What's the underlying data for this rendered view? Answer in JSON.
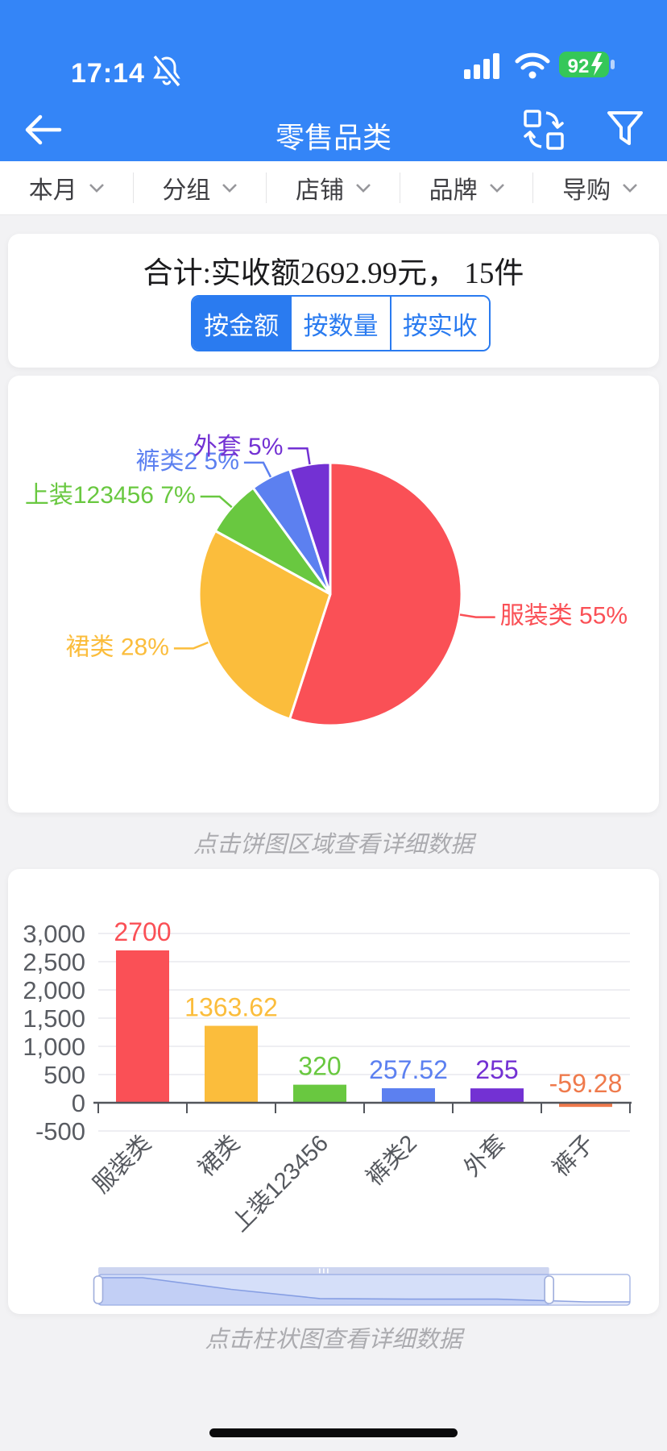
{
  "status_bar": {
    "time": "17:14",
    "battery_percent": "92",
    "icons": [
      "bell-muted-icon",
      "signal-icon",
      "wifi-icon",
      "battery-charging-icon"
    ]
  },
  "nav": {
    "title": "零售品类",
    "icons": [
      "back-arrow-icon",
      "switch-view-icon",
      "filter-funnel-icon"
    ]
  },
  "filters": [
    {
      "label": "本月"
    },
    {
      "label": "分组"
    },
    {
      "label": "店铺"
    },
    {
      "label": "品牌"
    },
    {
      "label": "导购"
    }
  ],
  "summary": {
    "total_text": "合计:实收额2692.99元， 15件"
  },
  "tabs": [
    {
      "label": "按金额",
      "active": true
    },
    {
      "label": "按数量",
      "active": false
    },
    {
      "label": "按实收",
      "active": false
    }
  ],
  "pie_caption": "点击饼图区域查看详细数据",
  "bar_caption": "点击柱状图查看详细数据",
  "colors": {
    "header_blue": "#3485F7",
    "accent_blue": "#2A7BF0",
    "battery_green": "#35C759",
    "grid": "#E9E9EE",
    "axis": "#53565C"
  },
  "chart_data": [
    {
      "type": "pie",
      "title": "",
      "legend_position": "none",
      "series": [
        {
          "name": "服装类",
          "percent": 55,
          "color": "#FA5056"
        },
        {
          "name": "裙类",
          "percent": 28,
          "color": "#FBBD3C"
        },
        {
          "name": "上装123456",
          "percent": 7,
          "color": "#69C840"
        },
        {
          "name": "裤类2",
          "percent": 5,
          "color": "#5C80F0"
        },
        {
          "name": "外套",
          "percent": 5,
          "color": "#7331D3"
        }
      ]
    },
    {
      "type": "bar",
      "title": "",
      "categories": [
        "服装类",
        "裙类",
        "上装123456",
        "裤类2",
        "外套",
        "裤子"
      ],
      "values": [
        2700,
        1363.62,
        320,
        257.52,
        255,
        -59.28
      ],
      "value_labels": [
        "2700",
        "1363.62",
        "320",
        "257.52",
        "255",
        "-59.28"
      ],
      "bar_colors": [
        "#FA5056",
        "#FBBD3C",
        "#69C840",
        "#5C80F0",
        "#7331D3",
        "#EF7A4C"
      ],
      "xlabel": "",
      "ylabel": "",
      "ylim": [
        -500,
        3000
      ],
      "yticks": {
        "values": [
          3000,
          2500,
          2000,
          1500,
          1000,
          500,
          0,
          -500
        ],
        "labels": [
          "3,000",
          "2,500",
          "2,000",
          "1,500",
          "1,000",
          "500",
          "0",
          "-500"
        ]
      },
      "grid": true,
      "datazoom": {
        "selected_start_frac": 0.0,
        "selected_end_frac": 0.848,
        "grip": "|||"
      }
    }
  ]
}
